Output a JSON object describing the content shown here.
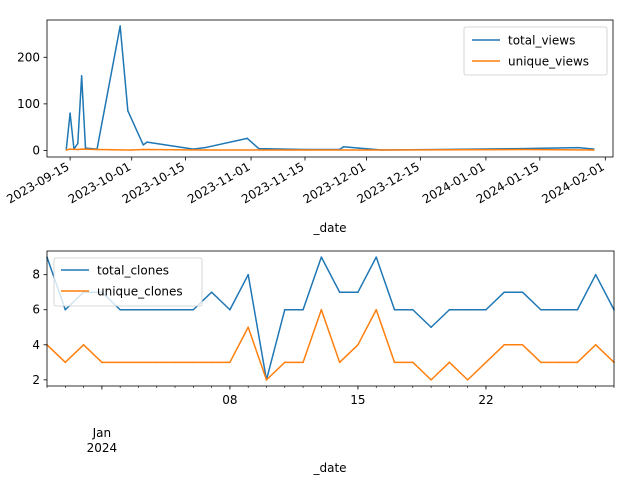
{
  "chart_data": [
    {
      "type": "line",
      "xlabel": "_date",
      "ylabel": "",
      "xlim": [
        "2023-09-09",
        "2024-02-03"
      ],
      "ylim": [
        -14,
        280
      ],
      "x_ticks": [
        "2023-09-15",
        "2023-10-01",
        "2023-10-15",
        "2023-11-01",
        "2023-11-15",
        "2023-12-01",
        "2023-12-15",
        "2024-01-01",
        "2024-01-15",
        "2024-02-01"
      ],
      "y_ticks": [
        0,
        100,
        200
      ],
      "grid": false,
      "legend": {
        "placement": "top-right",
        "entries": [
          "total_views",
          "unique_views"
        ]
      },
      "series": [
        {
          "name": "total_views",
          "color": "#1f77b4",
          "points": [
            [
              "2023-09-14",
              2
            ],
            [
              "2023-09-15",
              80
            ],
            [
              "2023-09-16",
              3
            ],
            [
              "2023-09-17",
              15
            ],
            [
              "2023-09-18",
              160
            ],
            [
              "2023-09-19",
              5
            ],
            [
              "2023-09-22",
              3
            ],
            [
              "2023-09-28",
              267
            ],
            [
              "2023-09-30",
              85
            ],
            [
              "2023-10-04",
              12
            ],
            [
              "2023-10-05",
              18
            ],
            [
              "2023-10-17",
              3
            ],
            [
              "2023-10-20",
              6
            ],
            [
              "2023-10-31",
              26
            ],
            [
              "2023-11-03",
              4
            ],
            [
              "2023-11-15",
              2
            ],
            [
              "2023-11-24",
              2
            ],
            [
              "2023-11-25",
              8
            ],
            [
              "2023-11-29",
              5
            ],
            [
              "2023-12-05",
              1
            ],
            [
              "2023-12-20",
              2
            ],
            [
              "2024-01-10",
              4
            ],
            [
              "2024-01-25",
              6
            ],
            [
              "2024-01-29",
              3
            ]
          ]
        },
        {
          "name": "unique_views",
          "color": "#ff7f0e",
          "points": [
            [
              "2023-09-14",
              1
            ],
            [
              "2023-09-15",
              3
            ],
            [
              "2023-09-17",
              2
            ],
            [
              "2023-09-18",
              3
            ],
            [
              "2023-09-22",
              2
            ],
            [
              "2023-10-01",
              1
            ],
            [
              "2023-10-04",
              2
            ],
            [
              "2023-10-20",
              1
            ],
            [
              "2023-11-15",
              1
            ],
            [
              "2023-12-05",
              1
            ],
            [
              "2024-01-10",
              2
            ],
            [
              "2024-01-29",
              1
            ]
          ]
        }
      ]
    },
    {
      "type": "line",
      "xlabel": "_date",
      "ylabel": "",
      "xlim": [
        "2023-12-29",
        "2024-01-29"
      ],
      "ylim": [
        1.65,
        9.35
      ],
      "x_ticks": [
        {
          "date": "2024-01-01",
          "label": "Jan",
          "sublabel": "2024"
        },
        {
          "date": "2024-01-08",
          "label": "08"
        },
        {
          "date": "2024-01-15",
          "label": "15"
        },
        {
          "date": "2024-01-22",
          "label": "22"
        }
      ],
      "y_ticks": [
        2,
        4,
        6,
        8
      ],
      "grid": false,
      "legend": {
        "placement": "top-left",
        "entries": [
          "total_clones",
          "unique_clones"
        ]
      },
      "dates": [
        "2023-12-29",
        "2023-12-30",
        "2023-12-31",
        "2024-01-01",
        "2024-01-02",
        "2024-01-03",
        "2024-01-04",
        "2024-01-05",
        "2024-01-06",
        "2024-01-07",
        "2024-01-08",
        "2024-01-09",
        "2024-01-10",
        "2024-01-11",
        "2024-01-12",
        "2024-01-13",
        "2024-01-14",
        "2024-01-15",
        "2024-01-16",
        "2024-01-17",
        "2024-01-18",
        "2024-01-19",
        "2024-01-20",
        "2024-01-21",
        "2024-01-22",
        "2024-01-23",
        "2024-01-24",
        "2024-01-25",
        "2024-01-26",
        "2024-01-27",
        "2024-01-28",
        "2024-01-29"
      ],
      "series": [
        {
          "name": "total_clones",
          "color": "#1f77b4",
          "values": [
            9,
            6,
            7,
            7,
            6,
            6,
            6,
            6,
            6,
            7,
            6,
            8,
            2,
            6,
            6,
            9,
            7,
            7,
            9,
            6,
            6,
            5,
            6,
            6,
            6,
            7,
            7,
            6,
            6,
            6,
            8,
            6
          ]
        },
        {
          "name": "unique_clones",
          "color": "#ff7f0e",
          "values": [
            4,
            3,
            4,
            3,
            3,
            3,
            3,
            3,
            3,
            3,
            3,
            5,
            2,
            3,
            3,
            6,
            3,
            4,
            6,
            3,
            3,
            2,
            3,
            2,
            3,
            4,
            4,
            3,
            3,
            3,
            4,
            3
          ]
        }
      ]
    }
  ]
}
